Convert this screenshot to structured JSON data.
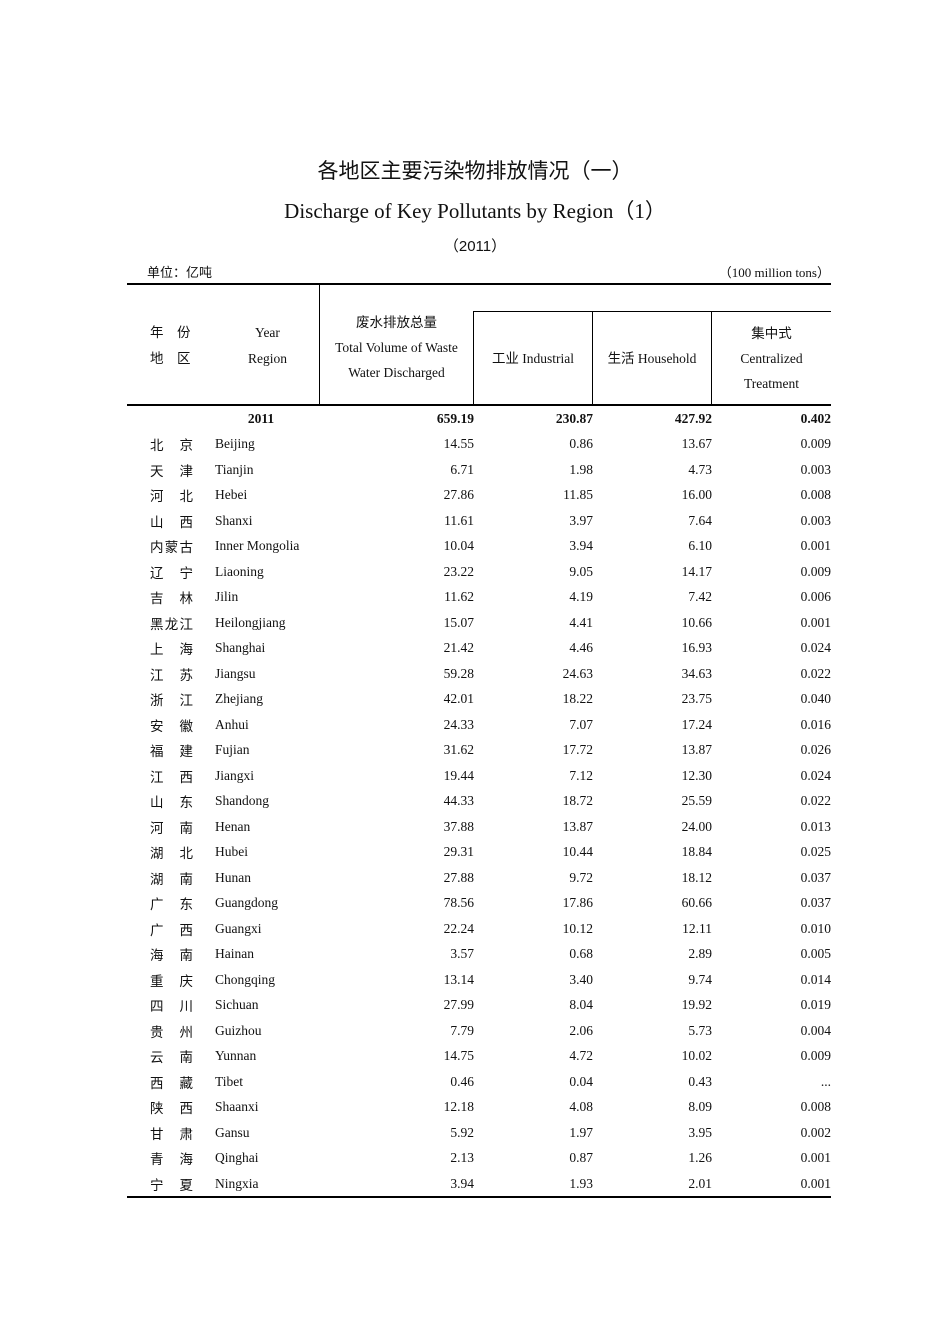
{
  "title_cn": "各地区主要污染物排放情况（一）",
  "title_en": "Discharge of Key Pollutants by Region（1）",
  "year_label": "（2011）",
  "unit_cn": "单位：亿吨",
  "unit_en": "（100 million tons）",
  "header": {
    "year_cn": "年　份",
    "region_cn": "地　区",
    "year_en": "Year",
    "region_en": "Region",
    "total_cn": "废水排放总量",
    "total_en_1": "Total Volume of Waste",
    "total_en_2": "Water Discharged",
    "industrial": "工业 Industrial",
    "household": "生活 Household",
    "centralized_cn": "集中式",
    "centralized_en_1": "Centralized",
    "centralized_en_2": "Treatment"
  },
  "total_row": {
    "year": "2011",
    "total": "659.19",
    "industrial": "230.87",
    "household": "427.92",
    "centralized": "0.402"
  },
  "rows": [
    {
      "cn": "北京",
      "en": "Beijing",
      "total": "14.55",
      "industrial": "0.86",
      "household": "13.67",
      "centralized": "0.009"
    },
    {
      "cn": "天津",
      "en": "Tianjin",
      "total": "6.71",
      "industrial": "1.98",
      "household": "4.73",
      "centralized": "0.003"
    },
    {
      "cn": "河北",
      "en": "Hebei",
      "total": "27.86",
      "industrial": "11.85",
      "household": "16.00",
      "centralized": "0.008"
    },
    {
      "cn": "山西",
      "en": "Shanxi",
      "total": "11.61",
      "industrial": "3.97",
      "household": "7.64",
      "centralized": "0.003"
    },
    {
      "cn": "内蒙古",
      "en": "Inner Mongolia",
      "total": "10.04",
      "industrial": "3.94",
      "household": "6.10",
      "centralized": "0.001"
    },
    {
      "cn": "辽宁",
      "en": "Liaoning",
      "total": "23.22",
      "industrial": "9.05",
      "household": "14.17",
      "centralized": "0.009"
    },
    {
      "cn": "吉林",
      "en": "Jilin",
      "total": "11.62",
      "industrial": "4.19",
      "household": "7.42",
      "centralized": "0.006"
    },
    {
      "cn": "黑龙江",
      "en": "Heilongjiang",
      "total": "15.07",
      "industrial": "4.41",
      "household": "10.66",
      "centralized": "0.001"
    },
    {
      "cn": "上海",
      "en": "Shanghai",
      "total": "21.42",
      "industrial": "4.46",
      "household": "16.93",
      "centralized": "0.024"
    },
    {
      "cn": "江苏",
      "en": "Jiangsu",
      "total": "59.28",
      "industrial": "24.63",
      "household": "34.63",
      "centralized": "0.022"
    },
    {
      "cn": "浙江",
      "en": "Zhejiang",
      "total": "42.01",
      "industrial": "18.22",
      "household": "23.75",
      "centralized": "0.040"
    },
    {
      "cn": "安徽",
      "en": "Anhui",
      "total": "24.33",
      "industrial": "7.07",
      "household": "17.24",
      "centralized": "0.016"
    },
    {
      "cn": "福建",
      "en": "Fujian",
      "total": "31.62",
      "industrial": "17.72",
      "household": "13.87",
      "centralized": "0.026"
    },
    {
      "cn": "江西",
      "en": "Jiangxi",
      "total": "19.44",
      "industrial": "7.12",
      "household": "12.30",
      "centralized": "0.024"
    },
    {
      "cn": "山东",
      "en": "Shandong",
      "total": "44.33",
      "industrial": "18.72",
      "household": "25.59",
      "centralized": "0.022"
    },
    {
      "cn": "河南",
      "en": "Henan",
      "total": "37.88",
      "industrial": "13.87",
      "household": "24.00",
      "centralized": "0.013"
    },
    {
      "cn": "湖北",
      "en": "Hubei",
      "total": "29.31",
      "industrial": "10.44",
      "household": "18.84",
      "centralized": "0.025"
    },
    {
      "cn": "湖南",
      "en": "Hunan",
      "total": "27.88",
      "industrial": "9.72",
      "household": "18.12",
      "centralized": "0.037"
    },
    {
      "cn": "广东",
      "en": "Guangdong",
      "total": "78.56",
      "industrial": "17.86",
      "household": "60.66",
      "centralized": "0.037"
    },
    {
      "cn": "广西",
      "en": "Guangxi",
      "total": "22.24",
      "industrial": "10.12",
      "household": "12.11",
      "centralized": "0.010"
    },
    {
      "cn": "海南",
      "en": "Hainan",
      "total": "3.57",
      "industrial": "0.68",
      "household": "2.89",
      "centralized": "0.005"
    },
    {
      "cn": "重庆",
      "en": "Chongqing",
      "total": "13.14",
      "industrial": "3.40",
      "household": "9.74",
      "centralized": "0.014"
    },
    {
      "cn": "四川",
      "en": "Sichuan",
      "total": "27.99",
      "industrial": "8.04",
      "household": "19.92",
      "centralized": "0.019"
    },
    {
      "cn": "贵州",
      "en": "Guizhou",
      "total": "7.79",
      "industrial": "2.06",
      "household": "5.73",
      "centralized": "0.004"
    },
    {
      "cn": "云南",
      "en": "Yunnan",
      "total": "14.75",
      "industrial": "4.72",
      "household": "10.02",
      "centralized": "0.009"
    },
    {
      "cn": "西藏",
      "en": "Tibet",
      "total": "0.46",
      "industrial": "0.04",
      "household": "0.43",
      "centralized": "..."
    },
    {
      "cn": "陕西",
      "en": "Shaanxi",
      "total": "12.18",
      "industrial": "4.08",
      "household": "8.09",
      "centralized": "0.008"
    },
    {
      "cn": "甘肃",
      "en": "Gansu",
      "total": "5.92",
      "industrial": "1.97",
      "household": "3.95",
      "centralized": "0.002"
    },
    {
      "cn": "青海",
      "en": "Qinghai",
      "total": "2.13",
      "industrial": "0.87",
      "household": "1.26",
      "centralized": "0.001"
    },
    {
      "cn": "宁夏",
      "en": "Ningxia",
      "total": "3.94",
      "industrial": "1.93",
      "household": "2.01",
      "centralized": "0.001"
    }
  ]
}
